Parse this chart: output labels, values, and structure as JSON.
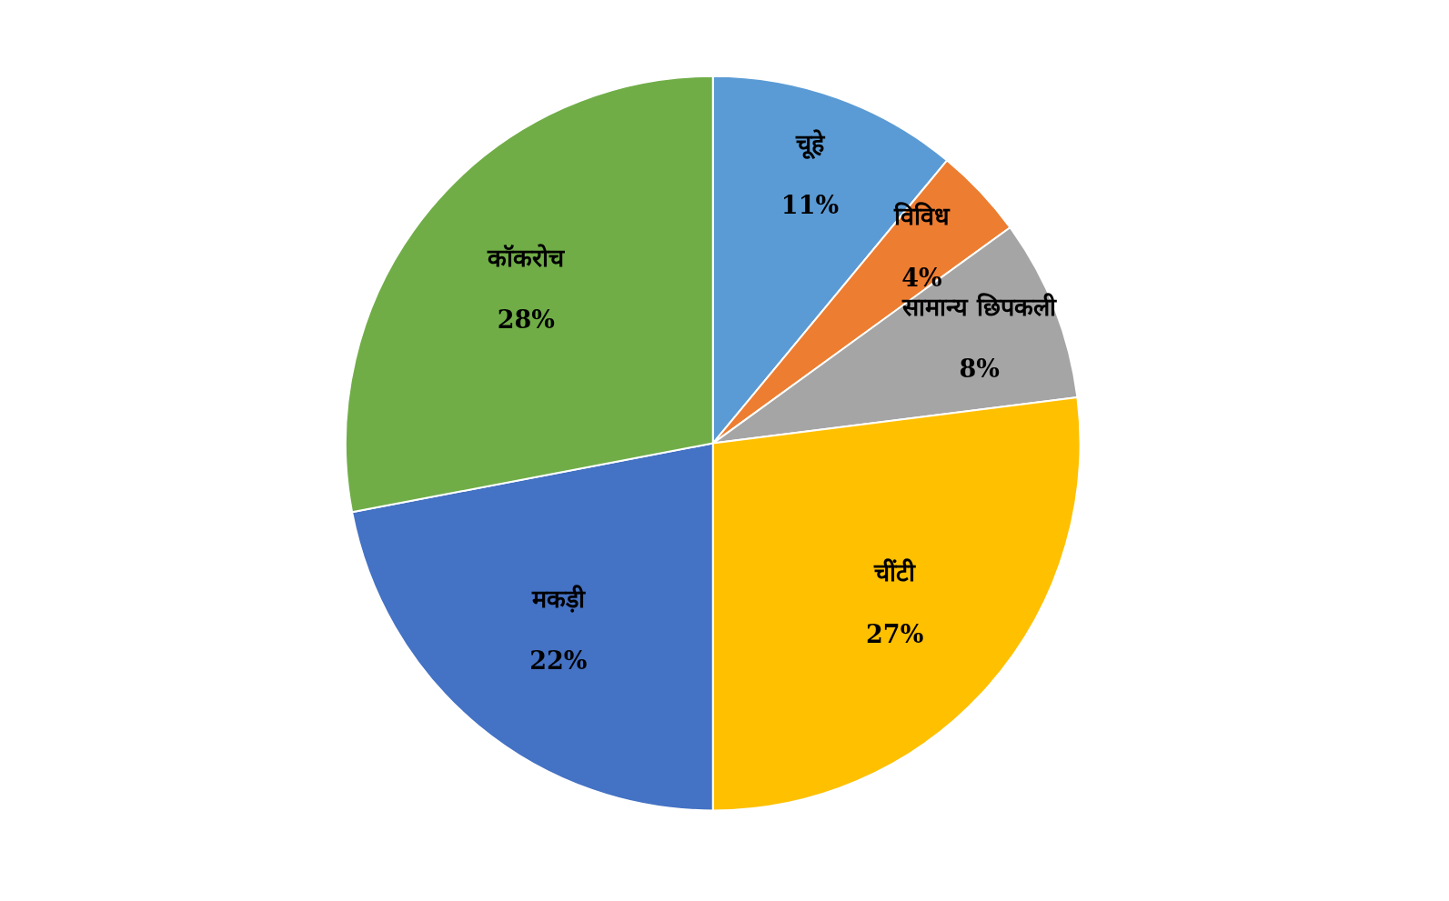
{
  "chart_data": {
    "type": "pie",
    "categories": [
      "चूहे",
      "विविध",
      "सामान्य छिपकली",
      "चींटी",
      "मकड़ी",
      "कॉकरोच"
    ],
    "values": [
      11,
      4,
      8,
      27,
      22,
      28
    ],
    "value_labels": [
      "11%",
      "4%",
      "8%",
      "27%",
      "22%",
      "28%"
    ],
    "colors": [
      "#5b9bd5",
      "#ed7d31",
      "#a5a5a5",
      "#ffc000",
      "#4472c4",
      "#70ad47"
    ],
    "legend": false
  }
}
